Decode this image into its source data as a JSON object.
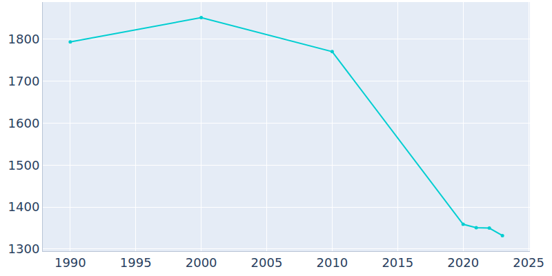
{
  "chart_data": {
    "type": "line",
    "x": [
      1990,
      2000,
      2010,
      2020,
      2021,
      2022,
      2023
    ],
    "values": [
      1793,
      1851,
      1770,
      1359,
      1351,
      1350,
      1332
    ],
    "color": "#00ced1",
    "marker": "circle",
    "xlim": [
      1987.9,
      2025.1
    ],
    "xticks": [
      1990,
      1995,
      2000,
      2005,
      2010,
      2015,
      2020,
      2025
    ],
    "ylim": [
      1295,
      1888
    ],
    "yticks": [
      1300,
      1400,
      1500,
      1600,
      1700,
      1800
    ],
    "grid": true
  }
}
